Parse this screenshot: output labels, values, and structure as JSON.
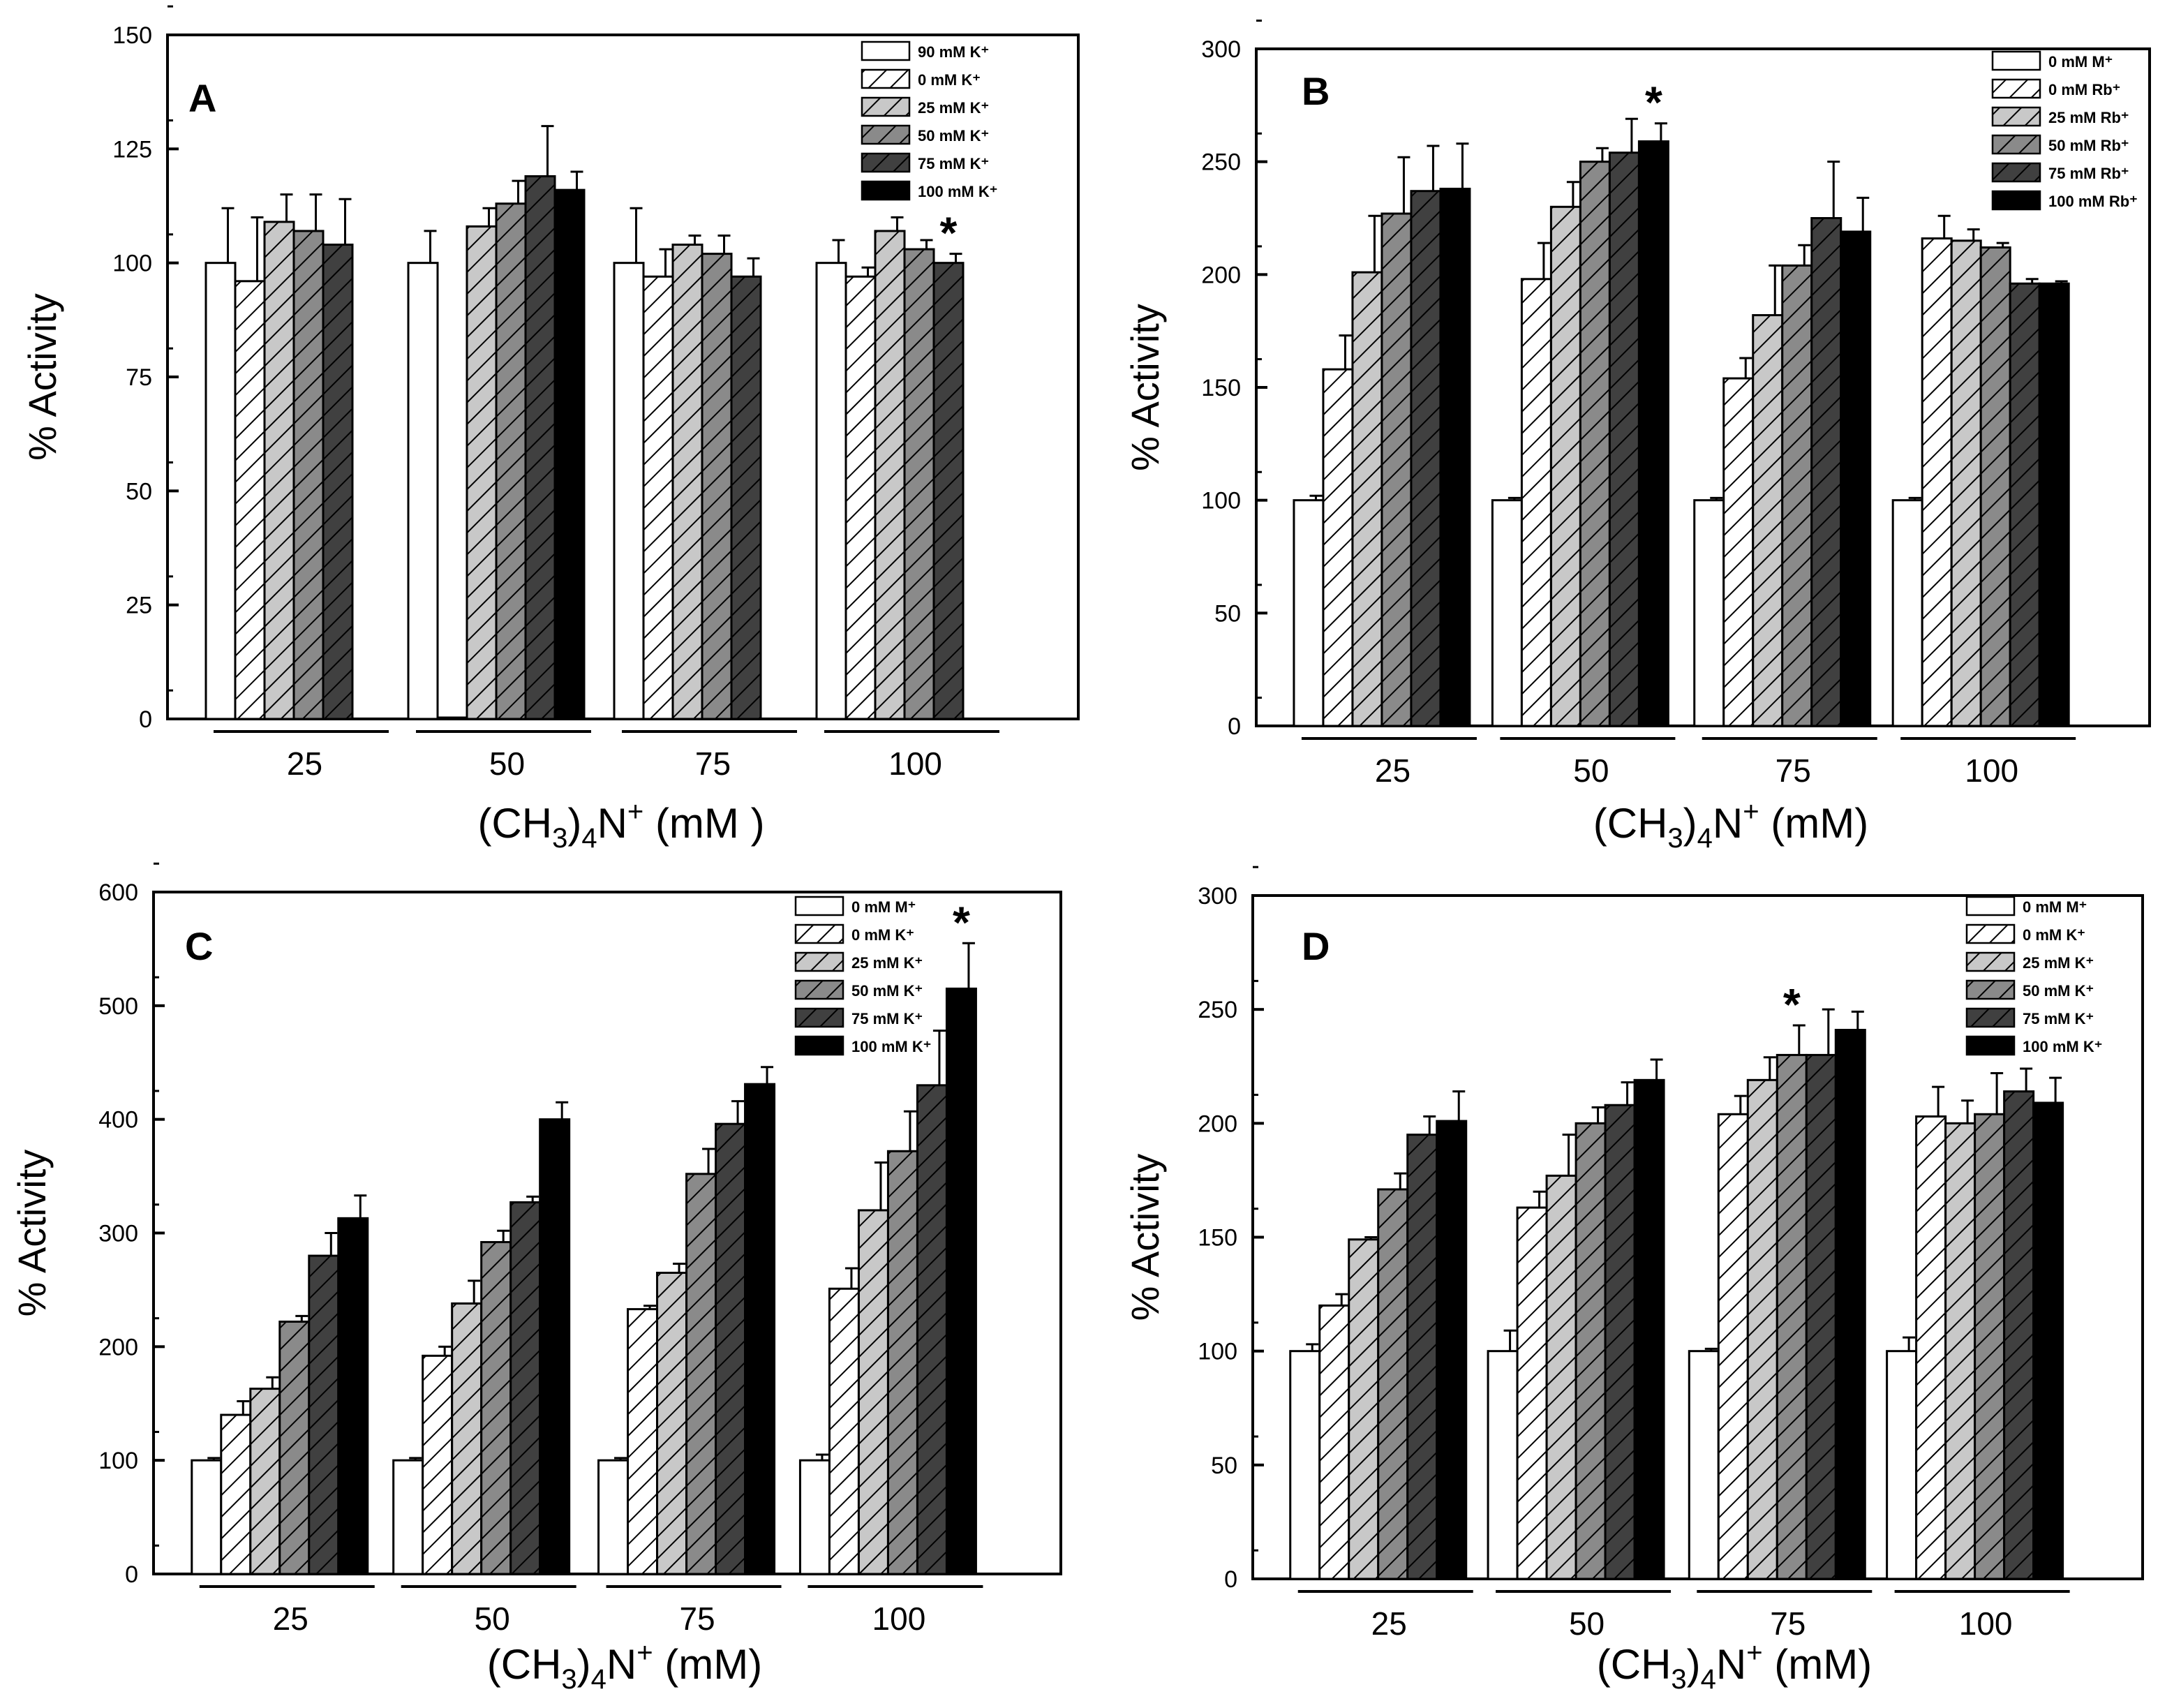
{
  "figure": {
    "background": "#ffffff",
    "ink": "#000000"
  },
  "series_styles": [
    {
      "fill": "#ffffff",
      "hatch": false
    },
    {
      "fill": "#ffffff",
      "hatch": true
    },
    {
      "fill": "#c8c8c8",
      "hatch": true
    },
    {
      "fill": "#8a8a8a",
      "hatch": true
    },
    {
      "fill": "#404040",
      "hatch": true
    },
    {
      "fill": "#000000",
      "hatch": false
    }
  ],
  "chart_data": [
    {
      "panel": "A",
      "type": "bar",
      "ylabel": "% Activity",
      "xlabel_parts": [
        "(CH",
        "3",
        ")",
        "4",
        "N",
        "+",
        " (mM )"
      ],
      "ylim": [
        0,
        150
      ],
      "yticks": [
        "0",
        "25",
        "50",
        "75",
        "100",
        "125",
        "150"
      ],
      "categories": [
        "25",
        "50",
        "75",
        "100"
      ],
      "series": [
        {
          "name": "90 mM K⁺",
          "values": [
            100,
            100,
            100,
            100
          ],
          "errors": [
            12,
            7,
            12,
            5
          ]
        },
        {
          "name": "0 mM K⁺",
          "values": [
            96,
            0.3,
            97,
            97
          ],
          "errors": [
            14,
            0,
            6,
            2
          ]
        },
        {
          "name": "25 mM K⁺",
          "values": [
            109,
            108,
            104,
            107
          ],
          "errors": [
            6,
            4,
            2,
            3
          ]
        },
        {
          "name": "50 mM K⁺",
          "values": [
            107,
            113,
            102,
            103
          ],
          "errors": [
            8,
            5,
            4,
            2
          ]
        },
        {
          "name": "75 mM K⁺",
          "values": [
            104,
            119,
            97,
            100
          ],
          "errors": [
            10,
            11,
            4,
            2
          ]
        },
        {
          "name": "100 mM K⁺",
          "values": [
            null,
            116,
            null,
            null
          ],
          "errors": [
            0,
            4,
            0,
            0
          ]
        }
      ],
      "annotations": [
        {
          "text": "*",
          "category": 3,
          "series": 4
        }
      ]
    },
    {
      "panel": "B",
      "type": "bar",
      "ylabel": "% Activity",
      "xlabel_parts": [
        "(CH",
        "3",
        ")",
        "4",
        "N",
        "+",
        " (mM)"
      ],
      "ylim": [
        0,
        300
      ],
      "yticks": [
        "0",
        "50",
        "100",
        "150",
        "200",
        "250",
        "300"
      ],
      "categories": [
        "25",
        "50",
        "75",
        "100"
      ],
      "series": [
        {
          "name": "0 mM M⁺",
          "values": [
            100,
            100,
            100,
            100
          ],
          "errors": [
            2,
            1,
            1,
            1
          ]
        },
        {
          "name": "0 mM Rb⁺",
          "values": [
            158,
            198,
            154,
            216
          ],
          "errors": [
            15,
            16,
            9,
            10
          ]
        },
        {
          "name": "25 mM Rb⁺",
          "values": [
            201,
            230,
            182,
            215
          ],
          "errors": [
            25,
            11,
            22,
            5
          ]
        },
        {
          "name": "50 mM Rb⁺",
          "values": [
            227,
            250,
            204,
            212
          ],
          "errors": [
            25,
            6,
            9,
            2
          ]
        },
        {
          "name": "75 mM Rb⁺",
          "values": [
            237,
            254,
            225,
            196
          ],
          "errors": [
            20,
            15,
            25,
            2
          ]
        },
        {
          "name": "100 mM Rb⁺",
          "values": [
            238,
            259,
            219,
            196
          ],
          "errors": [
            20,
            8,
            15,
            1
          ]
        }
      ],
      "annotations": [
        {
          "text": "*",
          "category": 1,
          "series": 5
        }
      ]
    },
    {
      "panel": "C",
      "type": "bar",
      "ylabel": "% Activity",
      "xlabel_parts": [
        "(CH",
        "3",
        ")",
        "4",
        "N",
        "+",
        " (mM)"
      ],
      "ylim": [
        0,
        600
      ],
      "yticks": [
        "0",
        "100",
        "200",
        "300",
        "400",
        "500",
        "600"
      ],
      "categories": [
        "25",
        "50",
        "75",
        "100"
      ],
      "series": [
        {
          "name": "0 mM M⁺",
          "values": [
            100,
            100,
            100,
            100
          ],
          "errors": [
            2,
            2,
            2,
            5
          ]
        },
        {
          "name": "0 mM K⁺",
          "values": [
            140,
            192,
            233,
            251
          ],
          "errors": [
            12,
            8,
            3,
            18
          ]
        },
        {
          "name": "25 mM K⁺",
          "values": [
            163,
            238,
            265,
            320
          ],
          "errors": [
            10,
            20,
            8,
            42
          ]
        },
        {
          "name": "50 mM K⁺",
          "values": [
            222,
            292,
            352,
            372
          ],
          "errors": [
            5,
            10,
            22,
            35
          ]
        },
        {
          "name": "75 mM K⁺",
          "values": [
            280,
            327,
            396,
            430
          ],
          "errors": [
            20,
            5,
            20,
            48
          ]
        },
        {
          "name": "100 mM K⁺",
          "values": [
            313,
            400,
            431,
            515
          ],
          "errors": [
            20,
            15,
            15,
            40
          ]
        }
      ],
      "annotations": [
        {
          "text": "*",
          "category": 3,
          "series": 5
        }
      ]
    },
    {
      "panel": "D",
      "type": "bar",
      "ylabel": "% Activity",
      "xlabel_parts": [
        "(CH",
        "3",
        ")",
        "4",
        "N",
        "+",
        " (mM)"
      ],
      "ylim": [
        0,
        300
      ],
      "yticks": [
        "0",
        "50",
        "100",
        "150",
        "200",
        "250",
        "300"
      ],
      "categories": [
        "25",
        "50",
        "75",
        "100"
      ],
      "series": [
        {
          "name": "0 mM M⁺",
          "values": [
            100,
            100,
            100,
            100
          ],
          "errors": [
            3,
            9,
            1,
            6
          ]
        },
        {
          "name": "0 mM K⁺",
          "values": [
            120,
            163,
            204,
            203
          ],
          "errors": [
            5,
            7,
            8,
            13
          ]
        },
        {
          "name": "25 mM K⁺",
          "values": [
            149,
            177,
            219,
            200
          ],
          "errors": [
            1,
            18,
            10,
            10
          ]
        },
        {
          "name": "50 mM K⁺",
          "values": [
            171,
            200,
            230,
            204
          ],
          "errors": [
            7,
            7,
            13,
            18
          ]
        },
        {
          "name": "75 mM K⁺",
          "values": [
            195,
            208,
            230,
            214
          ],
          "errors": [
            8,
            10,
            20,
            10
          ]
        },
        {
          "name": "100 mM K⁺",
          "values": [
            201,
            219,
            241,
            209
          ],
          "errors": [
            13,
            9,
            8,
            11
          ]
        }
      ],
      "annotations": [
        {
          "text": "*",
          "category": 2,
          "series": 3
        }
      ]
    }
  ]
}
